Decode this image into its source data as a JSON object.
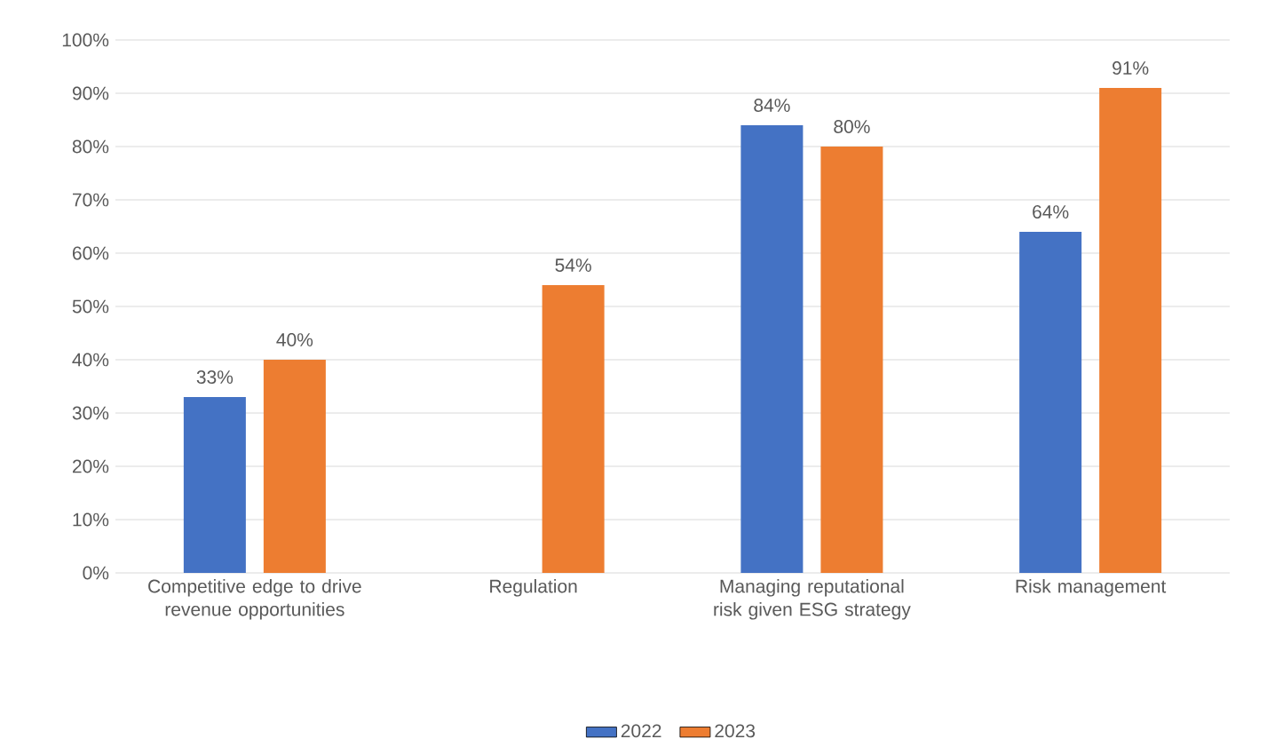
{
  "chart_data": {
    "type": "bar",
    "categories": [
      "Competitive edge to drive revenue opportunities",
      "Regulation",
      "Managing reputational risk given ESG strategy",
      "Risk management"
    ],
    "series": [
      {
        "name": "2022",
        "color": "#4472c4",
        "values": [
          33,
          null,
          84,
          64
        ],
        "value_labels": [
          "33%",
          null,
          "84%",
          "64%"
        ]
      },
      {
        "name": "2023",
        "color": "#ed7d31",
        "values": [
          40,
          54,
          80,
          91
        ],
        "value_labels": [
          "40%",
          "54%",
          "80%",
          "91%"
        ]
      }
    ],
    "ylim": [
      0,
      100
    ],
    "yticks": [
      {
        "value": 0,
        "label": "0%"
      },
      {
        "value": 10,
        "label": "10%"
      },
      {
        "value": 20,
        "label": "20%"
      },
      {
        "value": 30,
        "label": "30%"
      },
      {
        "value": 40,
        "label": "40%"
      },
      {
        "value": 50,
        "label": "50%"
      },
      {
        "value": 60,
        "label": "60%"
      },
      {
        "value": 70,
        "label": "70%"
      },
      {
        "value": 80,
        "label": "80%"
      },
      {
        "value": 90,
        "label": "90%"
      },
      {
        "value": 100,
        "label": "100%"
      }
    ],
    "grid": "y",
    "legend": "bottom"
  }
}
